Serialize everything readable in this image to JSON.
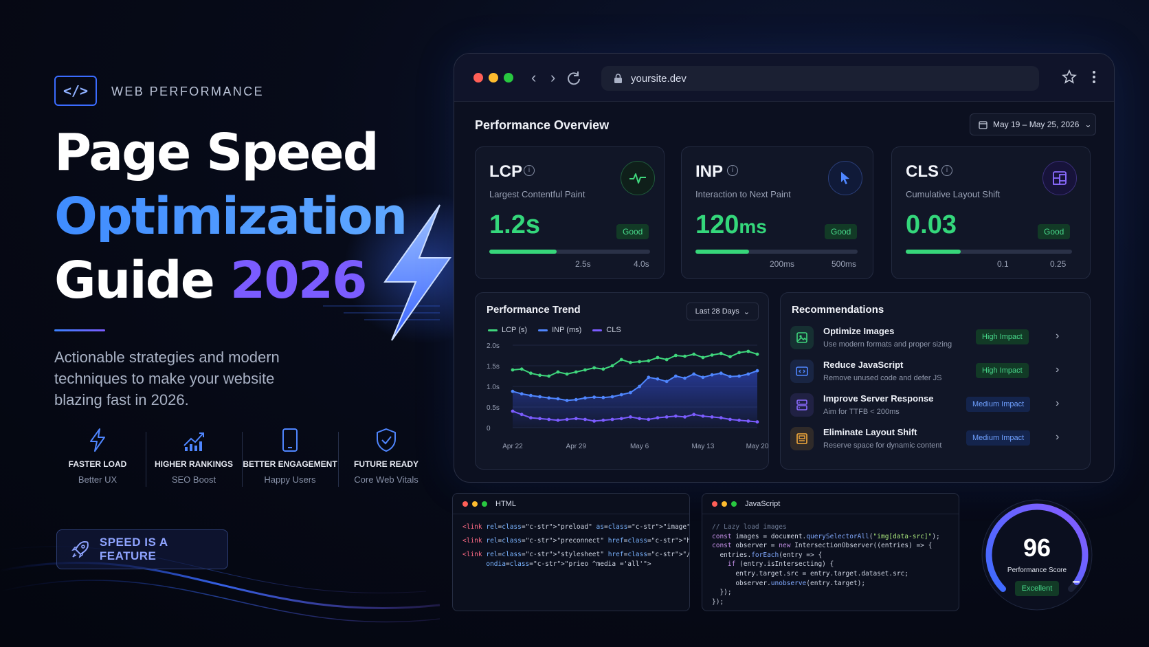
{
  "hero": {
    "tag_icon": "</>",
    "tag_label": "WEB PERFORMANCE",
    "title_line1": "Page Speed",
    "title_line2": "Optimization",
    "title_line3_word": "Guide",
    "title_line3_year": "2026",
    "description": "Actionable strategies and modern techniques to make your website blazing fast in 2026.",
    "features": [
      {
        "icon": "bolt-icon",
        "title": "FASTER LOAD",
        "subtitle": "Better UX"
      },
      {
        "icon": "chart-up-icon",
        "title": "HIGHER RANKINGS",
        "subtitle": "SEO Boost"
      },
      {
        "icon": "phone-icon",
        "title": "BETTER ENGAGEMENT",
        "subtitle": "Happy Users"
      },
      {
        "icon": "shield-check-icon",
        "title": "FUTURE READY",
        "subtitle": "Core Web Vitals"
      }
    ],
    "cta_label": "SPEED IS A FEATURE",
    "cta_icon": "rocket-icon"
  },
  "browser": {
    "url": "yoursite.dev",
    "controls": {
      "close": "#ff5f57",
      "minimize": "#febc2e",
      "maximize": "#28c840"
    }
  },
  "overview": {
    "title": "Performance Overview",
    "date_range": "May 19 – May 25, 2026",
    "metrics": [
      {
        "name": "LCP",
        "description": "Largest Contentful Paint",
        "value": "1.2s",
        "unit": "",
        "status": "Good",
        "progress": 0.42,
        "thresholds": [
          "2.5s",
          "4.0s"
        ],
        "icon": "pulse-icon"
      },
      {
        "name": "INP",
        "description": "Interaction to Next Paint",
        "value": "120",
        "unit": "ms",
        "status": "Good",
        "progress": 0.33,
        "thresholds": [
          "200ms",
          "500ms"
        ],
        "icon": "cursor-icon"
      },
      {
        "name": "CLS",
        "description": "Cumulative Layout Shift",
        "value": "0.03",
        "unit": "",
        "status": "Good",
        "progress": 0.33,
        "thresholds": [
          "0.1",
          "0.25"
        ],
        "icon": "layout-icon"
      }
    ]
  },
  "trend": {
    "title": "Performance Trend",
    "range_label": "Last 28 Days"
  },
  "chart_data": {
    "type": "line",
    "title": "Performance Trend",
    "x": [
      "Apr 22",
      "Apr 23",
      "Apr 24",
      "Apr 25",
      "Apr 26",
      "Apr 27",
      "Apr 28",
      "Apr 29",
      "Apr 30",
      "May 1",
      "May 2",
      "May 3",
      "May 4",
      "May 5",
      "May 6",
      "May 7",
      "May 8",
      "May 9",
      "May 10",
      "May 11",
      "May 12",
      "May 13",
      "May 14",
      "May 15",
      "May 16",
      "May 17",
      "May 18",
      "May 19"
    ],
    "x_tick_labels": [
      "Apr 22",
      "Apr 29",
      "May 6",
      "May 13",
      "May 20"
    ],
    "y_tick_labels": [
      "2.0s",
      "1.5s",
      "1.0s",
      "0.5s",
      "0"
    ],
    "ylim": [
      0,
      2.0
    ],
    "grid": true,
    "legend_position": "top-left",
    "series": [
      {
        "name": "LCP (s)",
        "color": "#3fd67c",
        "values": [
          1.4,
          1.42,
          1.32,
          1.27,
          1.25,
          1.35,
          1.3,
          1.35,
          1.4,
          1.45,
          1.42,
          1.5,
          1.65,
          1.58,
          1.6,
          1.62,
          1.7,
          1.65,
          1.75,
          1.73,
          1.78,
          1.7,
          1.76,
          1.8,
          1.72,
          1.82,
          1.85,
          1.78
        ]
      },
      {
        "name": "INP (ms)",
        "color": "#4f86ff",
        "values": [
          0.88,
          0.82,
          0.78,
          0.75,
          0.72,
          0.7,
          0.66,
          0.68,
          0.72,
          0.74,
          0.73,
          0.75,
          0.8,
          0.85,
          1.0,
          1.22,
          1.18,
          1.12,
          1.25,
          1.2,
          1.3,
          1.22,
          1.28,
          1.32,
          1.24,
          1.25,
          1.3,
          1.38
        ]
      },
      {
        "name": "CLS",
        "color": "#7b5cff",
        "values": [
          0.4,
          0.32,
          0.24,
          0.22,
          0.2,
          0.18,
          0.2,
          0.22,
          0.2,
          0.16,
          0.18,
          0.2,
          0.22,
          0.26,
          0.22,
          0.2,
          0.24,
          0.26,
          0.28,
          0.26,
          0.32,
          0.28,
          0.26,
          0.24,
          0.2,
          0.18,
          0.16,
          0.14
        ]
      }
    ]
  },
  "recommendations": {
    "title": "Recommendations",
    "items": [
      {
        "title": "Optimize Images",
        "subtitle": "Use modern formats and proper sizing",
        "impact": "High Impact",
        "level": "high",
        "icon": "image-icon",
        "icon_color": "#3fd67c"
      },
      {
        "title": "Reduce JavaScript",
        "subtitle": "Remove unused code and defer JS",
        "impact": "High Impact",
        "level": "high",
        "icon": "code-icon",
        "icon_color": "#4f86ff"
      },
      {
        "title": "Improve Server Response",
        "subtitle": "Aim for TTFB < 200ms",
        "impact": "Medium Impact",
        "level": "med",
        "icon": "server-icon",
        "icon_color": "#8a6bff"
      },
      {
        "title": "Eliminate Layout Shift",
        "subtitle": "Reserve space for dynamic content",
        "impact": "Medium Impact",
        "level": "med",
        "icon": "layout-shift-icon",
        "icon_color": "#f4a93b"
      }
    ]
  },
  "code_html": {
    "lang": "HTML",
    "lines": [
      "<link rel=\"preload\" as=\"image\" href=\"/hero.webp\">",
      "<link rel=\"preconnect\" href=\"https://fonts.gstatic.com\">",
      "<link rel=\"stylesheet\" href=\"/critical.css\"",
      "      ondia=\"prieo ^media ='all'\">"
    ]
  },
  "code_js": {
    "lang": "JavaScript",
    "lines": [
      "// Lazy load images",
      "const images = document.querySelectorAll(\"img[data-src]\");",
      "const observer = new IntersectionObserver((entries) => {",
      "  entries.forEach(entry => {",
      "    if (entry.isIntersecting) {",
      "      entry.target.src = entry.target.dataset.src;",
      "      observer.unobserve(entry.target);",
      "  });",
      "});"
    ]
  },
  "score": {
    "value": "96",
    "label": "Performance Score",
    "status": "Excellent",
    "fraction": 0.96
  }
}
